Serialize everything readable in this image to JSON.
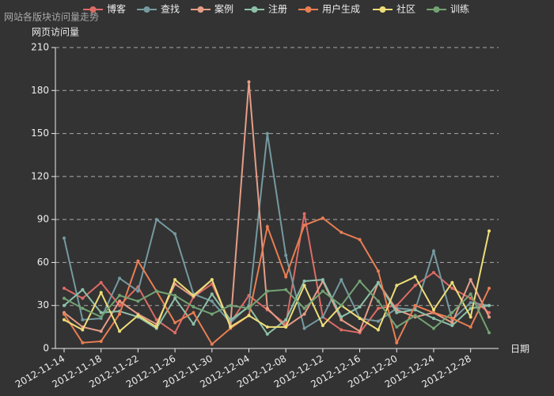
{
  "chart_data": {
    "type": "line",
    "title": "网站各版块访问量走势",
    "ylabel": "网页访问量",
    "xlabel": "日期",
    "categories": [
      "2012-11-14",
      null,
      "2012-11-18",
      null,
      "2012-11-22",
      null,
      "2012-11-26",
      null,
      "2012-11-30",
      null,
      "2012-12-04",
      null,
      "2012-12-08",
      null,
      "2012-12-12",
      null,
      "2012-12-16",
      null,
      "2012-12-20",
      null,
      "2012-12-24",
      null,
      "2012-12-28",
      null
    ],
    "ylim": [
      0,
      210
    ],
    "yticks": [
      0,
      30,
      60,
      90,
      120,
      150,
      180,
      210
    ],
    "grid": true,
    "legend": "top",
    "series": [
      {
        "name": "博客",
        "color": "#dd6b66",
        "values": [
          42,
          35,
          46,
          30,
          43,
          20,
          11,
          36,
          45,
          18,
          37,
          27,
          17,
          94,
          22,
          13,
          11,
          28,
          30,
          44,
          53,
          42,
          35,
          25
        ]
      },
      {
        "name": "查找",
        "color": "#759aa0",
        "values": [
          77,
          20,
          21,
          49,
          40,
          90,
          80,
          38,
          33,
          18,
          30,
          150,
          65,
          14,
          22,
          48,
          21,
          19,
          28,
          27,
          68,
          20,
          32,
          30
        ]
      },
      {
        "name": "案例",
        "color": "#e69d87",
        "values": [
          25,
          15,
          12,
          33,
          24,
          17,
          45,
          36,
          48,
          16,
          186,
          28,
          15,
          24,
          47,
          20,
          12,
          46,
          27,
          22,
          25,
          18,
          48,
          22
        ]
      },
      {
        "name": "注册",
        "color": "#8dc1a9",
        "values": [
          30,
          41,
          25,
          26,
          22,
          14,
          35,
          17,
          38,
          20,
          29,
          10,
          20,
          47,
          48,
          22,
          29,
          46,
          25,
          27,
          21,
          16,
          28,
          30
        ]
      },
      {
        "name": "用户生成",
        "color": "#ea7e53",
        "values": [
          24,
          4,
          5,
          24,
          61,
          40,
          18,
          25,
          3,
          14,
          23,
          85,
          50,
          86,
          91,
          81,
          76,
          54,
          4,
          30,
          25,
          21,
          15,
          42
        ]
      },
      {
        "name": "社区",
        "color": "#eedd78",
        "values": [
          20,
          13,
          39,
          12,
          23,
          15,
          48,
          37,
          48,
          15,
          23,
          15,
          15,
          44,
          16,
          30,
          21,
          13,
          44,
          50,
          27,
          46,
          22,
          82
        ]
      },
      {
        "name": "训练",
        "color": "#73a373",
        "values": [
          35,
          28,
          22,
          37,
          33,
          40,
          37,
          29,
          24,
          30,
          28,
          40,
          41,
          28,
          40,
          30,
          47,
          33,
          15,
          23,
          14,
          25,
          38,
          11
        ]
      }
    ]
  }
}
